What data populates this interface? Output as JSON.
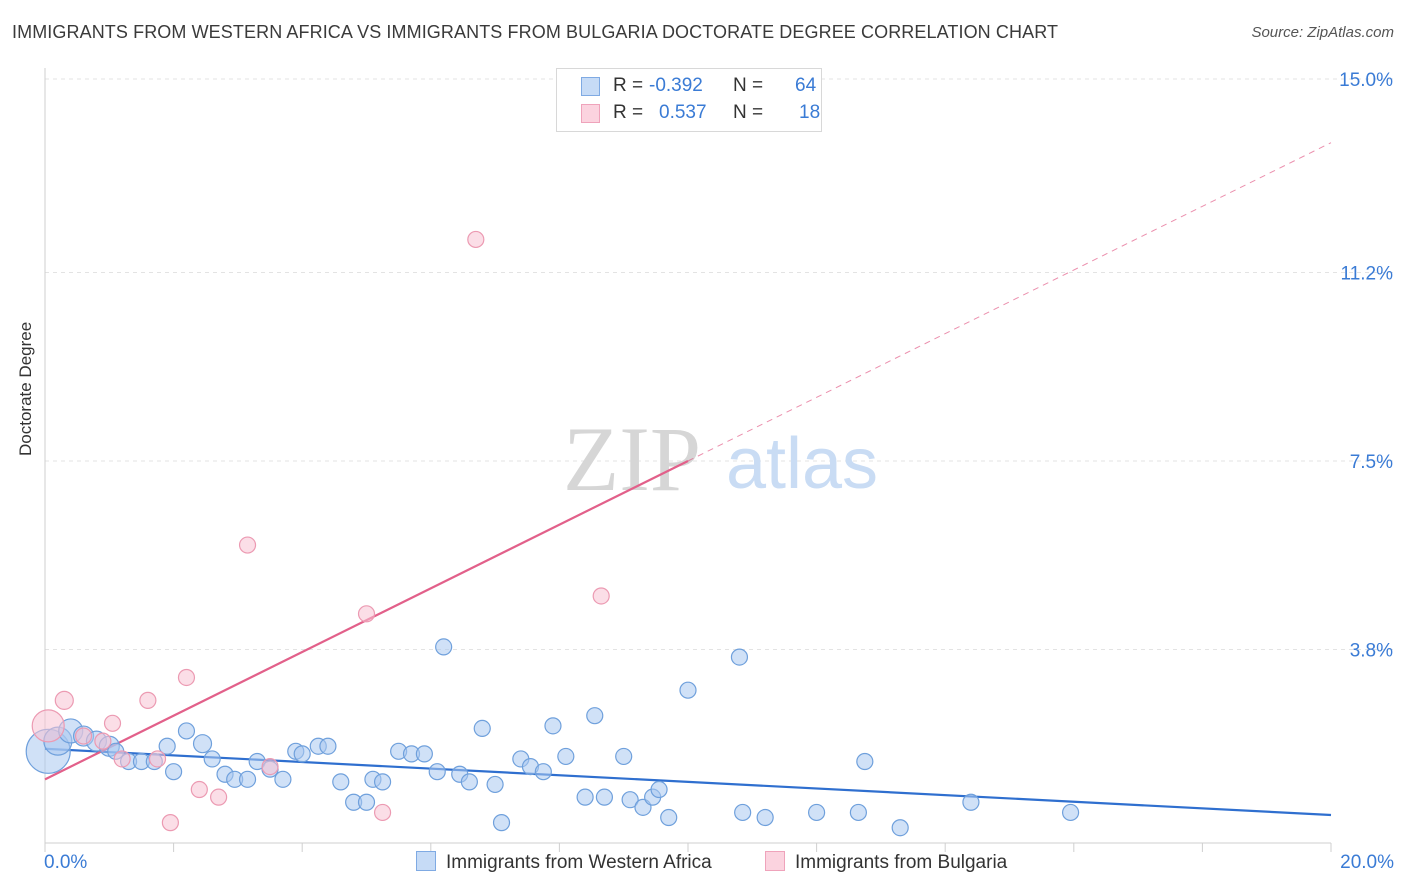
{
  "header": {
    "title": "IMMIGRANTS FROM WESTERN AFRICA VS IMMIGRANTS FROM BULGARIA DOCTORATE DEGREE CORRELATION CHART",
    "source": "Source: ZipAtlas.com"
  },
  "watermark": {
    "zip": "ZIP",
    "atlas": "atlas"
  },
  "legend": {
    "r_label": "R =",
    "n_label": "N =",
    "series": [
      {
        "r": "-0.392",
        "n": "64"
      },
      {
        "r": "0.537",
        "n": "18"
      }
    ]
  },
  "colors": {
    "blue_fill": "#a9c8f0",
    "blue_stroke": "#6fa0dc",
    "blue_line": "#2f6fcf",
    "pink_fill": "#f8c3d3",
    "pink_stroke": "#ec9ab2",
    "pink_line": "#e2608a",
    "axis_text": "#3a7bd5",
    "grid": "#e3e3e3"
  },
  "chart_data": {
    "type": "scatter",
    "title": "IMMIGRANTS FROM WESTERN AFRICA VS IMMIGRANTS FROM BULGARIA DOCTORATE DEGREE CORRELATION CHART",
    "xlabel": "",
    "ylabel": "Doctorate Degree",
    "xlim": [
      0,
      20
    ],
    "ylim": [
      0,
      15
    ],
    "x_tick_labels": [
      "0.0%",
      "20.0%"
    ],
    "y_ticks": [
      3.8,
      7.5,
      11.2,
      15.0
    ],
    "y_tick_labels": [
      "3.8%",
      "7.5%",
      "11.2%",
      "15.0%"
    ],
    "grid": true,
    "series": [
      {
        "name": "Immigrants from Western Africa",
        "color": "blue",
        "points": [
          [
            0.05,
            1.8,
            22
          ],
          [
            0.2,
            2.0,
            14
          ],
          [
            0.4,
            2.2,
            12
          ],
          [
            0.6,
            2.1,
            10
          ],
          [
            0.8,
            2.0,
            10
          ],
          [
            1.0,
            1.9,
            10
          ],
          [
            1.1,
            1.8,
            8
          ],
          [
            1.3,
            1.6,
            8
          ],
          [
            1.5,
            1.6,
            8
          ],
          [
            1.7,
            1.6,
            8
          ],
          [
            1.9,
            1.9,
            8
          ],
          [
            2.0,
            1.4,
            8
          ],
          [
            2.2,
            2.2,
            8
          ],
          [
            2.45,
            1.95,
            9
          ],
          [
            2.6,
            1.65,
            8
          ],
          [
            2.8,
            1.35,
            8
          ],
          [
            2.95,
            1.25,
            8
          ],
          [
            3.15,
            1.25,
            8
          ],
          [
            3.3,
            1.6,
            8
          ],
          [
            3.5,
            1.45,
            8
          ],
          [
            3.7,
            1.25,
            8
          ],
          [
            3.9,
            1.8,
            8
          ],
          [
            4.0,
            1.75,
            8
          ],
          [
            4.25,
            1.9,
            8
          ],
          [
            4.4,
            1.9,
            8
          ],
          [
            4.6,
            1.2,
            8
          ],
          [
            4.8,
            0.8,
            8
          ],
          [
            5.0,
            0.8,
            8
          ],
          [
            5.1,
            1.25,
            8
          ],
          [
            5.25,
            1.2,
            8
          ],
          [
            5.5,
            1.8,
            8
          ],
          [
            5.7,
            1.75,
            8
          ],
          [
            5.9,
            1.75,
            8
          ],
          [
            6.1,
            1.4,
            8
          ],
          [
            6.2,
            3.85,
            8
          ],
          [
            6.45,
            1.35,
            8
          ],
          [
            6.6,
            1.2,
            8
          ],
          [
            6.8,
            2.25,
            8
          ],
          [
            7.0,
            1.15,
            8
          ],
          [
            7.1,
            0.4,
            8
          ],
          [
            7.4,
            1.65,
            8
          ],
          [
            7.55,
            1.5,
            8
          ],
          [
            7.75,
            1.4,
            8
          ],
          [
            7.9,
            2.3,
            8
          ],
          [
            8.1,
            1.7,
            8
          ],
          [
            8.4,
            0.9,
            8
          ],
          [
            8.55,
            2.5,
            8
          ],
          [
            8.7,
            0.9,
            8
          ],
          [
            9.0,
            1.7,
            8
          ],
          [
            9.1,
            0.85,
            8
          ],
          [
            9.3,
            0.7,
            8
          ],
          [
            9.45,
            0.9,
            8
          ],
          [
            9.55,
            1.05,
            8
          ],
          [
            9.7,
            0.5,
            8
          ],
          [
            10.0,
            3.0,
            8
          ],
          [
            10.8,
            3.65,
            8
          ],
          [
            10.85,
            0.6,
            8
          ],
          [
            11.2,
            0.5,
            8
          ],
          [
            12.0,
            0.6,
            8
          ],
          [
            12.65,
            0.6,
            8
          ],
          [
            12.75,
            1.6,
            8
          ],
          [
            13.3,
            0.3,
            8
          ],
          [
            14.4,
            0.8,
            8
          ],
          [
            15.95,
            0.6,
            8
          ]
        ]
      },
      {
        "name": "Immigrants from Bulgaria",
        "color": "pink",
        "points": [
          [
            0.05,
            2.3,
            16
          ],
          [
            0.3,
            2.8,
            9
          ],
          [
            0.6,
            2.1,
            8
          ],
          [
            0.9,
            2.0,
            8
          ],
          [
            1.05,
            2.35,
            8
          ],
          [
            1.2,
            1.65,
            8
          ],
          [
            1.6,
            2.8,
            8
          ],
          [
            1.75,
            1.65,
            8
          ],
          [
            1.95,
            0.4,
            8
          ],
          [
            2.2,
            3.25,
            8
          ],
          [
            2.4,
            1.05,
            8
          ],
          [
            2.7,
            0.9,
            8
          ],
          [
            3.15,
            5.85,
            8
          ],
          [
            3.5,
            1.5,
            8
          ],
          [
            5.0,
            4.5,
            8
          ],
          [
            5.25,
            0.6,
            8
          ],
          [
            6.7,
            11.85,
            8
          ],
          [
            8.65,
            4.85,
            8
          ]
        ]
      }
    ],
    "trend_lines": [
      {
        "series": "Immigrants from Western Africa",
        "x": [
          0,
          20
        ],
        "y": [
          1.85,
          0.55
        ],
        "style": "solid"
      },
      {
        "series": "Immigrants from Bulgaria",
        "x": [
          0,
          10
        ],
        "y": [
          1.25,
          7.5
        ],
        "style": "solid"
      },
      {
        "series": "Immigrants from Bulgaria",
        "x": [
          10,
          20
        ],
        "y": [
          7.5,
          13.75
        ],
        "style": "dashed"
      }
    ]
  }
}
